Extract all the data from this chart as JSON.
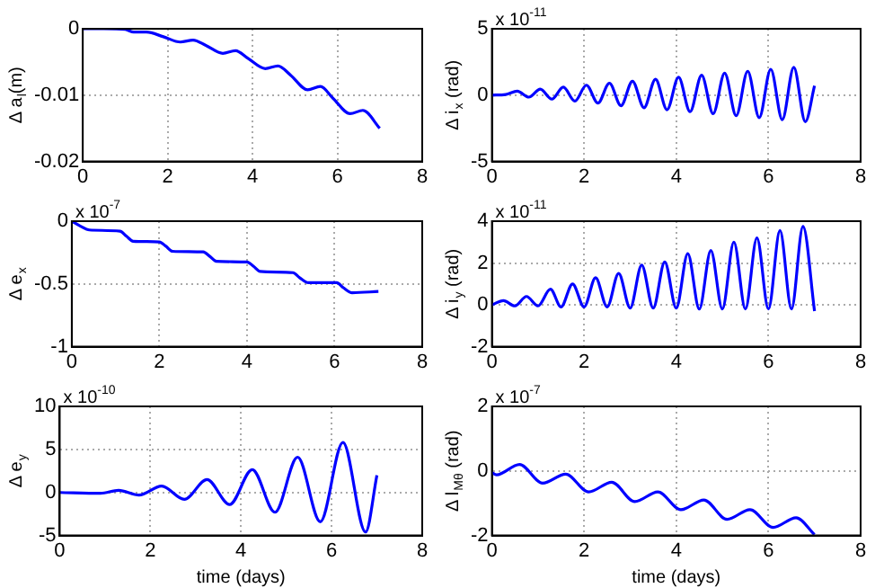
{
  "chart_data": [
    {
      "type": "line",
      "ylabel": "Δ a$_{l}$(m)",
      "color": "#0000ff",
      "grid": true,
      "xlim": [
        0,
        8
      ],
      "xticks": [
        0,
        2,
        4,
        6,
        8
      ],
      "ylim": [
        -0.02,
        0
      ],
      "yticks": [
        -0.02,
        -0.01,
        0
      ],
      "x": [
        0,
        0.5,
        1,
        1.2,
        1.5,
        1.9,
        2.3,
        2.6,
        2.9,
        3.3,
        3.6,
        3.9,
        4.3,
        4.6,
        4.9,
        5.3,
        5.6,
        5.9,
        6.3,
        6.6,
        7
      ],
      "values": [
        0,
        0,
        -0.0001,
        -0.0005,
        -0.0005,
        -0.0012,
        -0.002,
        -0.0017,
        -0.0025,
        -0.0037,
        -0.0033,
        -0.0045,
        -0.006,
        -0.0056,
        -0.007,
        -0.0092,
        -0.0087,
        -0.0105,
        -0.0128,
        -0.0123,
        -0.015
      ]
    },
    {
      "type": "line",
      "ylabel": "Δ i$_{x}$ (rad)",
      "annotations": [
        "x 10$^{-11}$"
      ],
      "color": "#0000ff",
      "grid": true,
      "xlim": [
        0,
        8
      ],
      "xticks": [
        0,
        2,
        4,
        6,
        8
      ],
      "ylim": [
        -5,
        5
      ],
      "yticks": [
        -5,
        0,
        5
      ],
      "x": [
        0,
        0.3,
        0.55,
        0.8,
        1.05,
        1.3,
        1.55,
        1.8,
        2.05,
        2.3,
        2.55,
        2.8,
        3.05,
        3.3,
        3.55,
        3.8,
        4.05,
        4.3,
        4.55,
        4.8,
        5.05,
        5.3,
        5.55,
        5.8,
        6.05,
        6.3,
        6.55,
        6.8,
        7
      ],
      "values": [
        0,
        0.05,
        0.3,
        -0.15,
        0.45,
        -0.3,
        0.6,
        -0.45,
        0.75,
        -0.6,
        0.9,
        -0.8,
        1.05,
        -0.95,
        1.2,
        -1.1,
        1.35,
        -1.25,
        1.5,
        -1.4,
        1.65,
        -1.55,
        1.8,
        -1.7,
        1.95,
        -1.85,
        2.1,
        -2,
        0.7
      ]
    },
    {
      "type": "line",
      "ylabel": "Δ e$_{x}$",
      "annotations": [
        "x 10$^{-7}$"
      ],
      "color": "#0000ff",
      "grid": true,
      "xlim": [
        0,
        8
      ],
      "xticks": [
        0,
        2,
        4,
        6,
        8
      ],
      "ylim": [
        -1,
        0
      ],
      "yticks": [
        -1,
        -0.5,
        0
      ],
      "x": [
        0,
        0.2,
        0.4,
        1.1,
        1.25,
        1.4,
        2,
        2.15,
        2.3,
        3,
        3.15,
        3.3,
        4,
        4.15,
        4.3,
        5.05,
        5.2,
        5.4,
        6.05,
        6.2,
        6.4,
        7
      ],
      "values": [
        0,
        -0.04,
        -0.07,
        -0.08,
        -0.12,
        -0.16,
        -0.165,
        -0.2,
        -0.24,
        -0.245,
        -0.28,
        -0.32,
        -0.325,
        -0.36,
        -0.4,
        -0.41,
        -0.45,
        -0.49,
        -0.49,
        -0.53,
        -0.57,
        -0.56
      ]
    },
    {
      "type": "line",
      "ylabel": "Δ i$_{y}$ (rad)",
      "annotations": [
        "x 10$^{-11}$"
      ],
      "color": "#0000ff",
      "grid": true,
      "xlim": [
        0,
        8
      ],
      "xticks": [
        0,
        2,
        4,
        6,
        8
      ],
      "ylim": [
        -2,
        4
      ],
      "yticks": [
        -2,
        0,
        2,
        4
      ],
      "x": [
        0,
        0.25,
        0.5,
        0.75,
        1,
        1.27,
        1.5,
        1.75,
        2,
        2.25,
        2.5,
        2.75,
        3,
        3.25,
        3.5,
        3.75,
        4,
        4.25,
        4.5,
        4.75,
        5,
        5.25,
        5.5,
        5.75,
        6,
        6.25,
        6.5,
        6.75,
        7
      ],
      "values": [
        0,
        0.2,
        -0.05,
        0.4,
        -0.05,
        0.75,
        -0.1,
        1,
        -0.1,
        1.3,
        -0.1,
        1.5,
        -0.15,
        1.9,
        -0.15,
        2.05,
        -0.15,
        2.45,
        -0.2,
        2.6,
        -0.2,
        3,
        -0.2,
        3.2,
        -0.2,
        3.55,
        -0.2,
        3.75,
        -0.3
      ]
    },
    {
      "type": "line",
      "ylabel": "Δ e$_{y}$",
      "xlabel": "time (days)",
      "annotations": [
        "x 10$^{-10}$"
      ],
      "color": "#0000ff",
      "grid": true,
      "xlim": [
        0,
        8
      ],
      "xticks": [
        0,
        2,
        4,
        6,
        8
      ],
      "ylim": [
        -5,
        10
      ],
      "yticks": [
        -5,
        0,
        5,
        10
      ],
      "x": [
        0,
        0.9,
        1.3,
        1.75,
        2.25,
        2.75,
        3.25,
        3.75,
        4.25,
        4.75,
        5.25,
        5.75,
        6.25,
        6.75,
        7
      ],
      "values": [
        0,
        -0.1,
        0.25,
        -0.3,
        0.75,
        -0.8,
        1.5,
        -1.4,
        2.65,
        -2.3,
        4.1,
        -3.4,
        5.8,
        -4.6,
        2
      ]
    },
    {
      "type": "line",
      "ylabel": "Δ l$_{Mθ}$ (rad)",
      "xlabel": "time (days)",
      "annotations": [
        "x 10$^{-7}$"
      ],
      "color": "#0000ff",
      "grid": true,
      "xlim": [
        0,
        8
      ],
      "xticks": [
        0,
        2,
        4,
        6,
        8
      ],
      "ylim": [
        -2,
        2
      ],
      "yticks": [
        -2,
        0,
        2
      ],
      "x": [
        0,
        0.1,
        0.6,
        1.1,
        1.6,
        2.1,
        2.6,
        3.1,
        3.6,
        4.1,
        4.6,
        5.1,
        5.6,
        6.1,
        6.6,
        7
      ],
      "values": [
        -0.05,
        -0.12,
        0.2,
        -0.38,
        -0.1,
        -0.65,
        -0.35,
        -0.95,
        -0.65,
        -1.2,
        -0.9,
        -1.5,
        -1.2,
        -1.75,
        -1.45,
        -1.97
      ]
    }
  ]
}
